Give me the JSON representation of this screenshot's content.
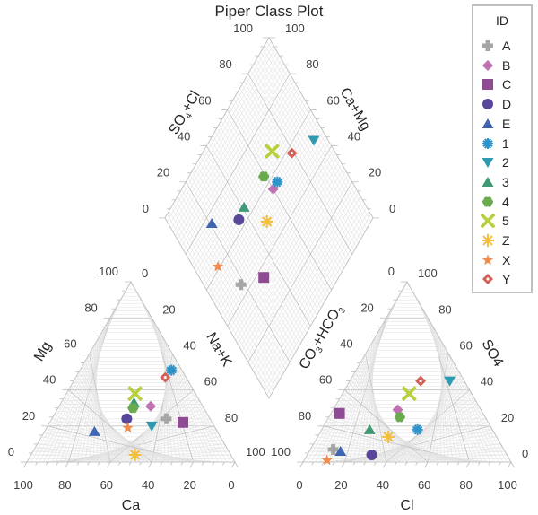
{
  "chart_data": {
    "type": "scatter",
    "subtype": "piper-diagram",
    "title": "Piper Class Plot",
    "cation_triangle": {
      "bottom_axis_label": "Ca",
      "left_axis_label": "Mg",
      "right_axis_label": "Na+K",
      "bottom_ticks": [
        "100",
        "80",
        "60",
        "40",
        "20",
        "0"
      ],
      "left_ticks": [
        "0",
        "20",
        "40",
        "60",
        "80",
        "100"
      ],
      "right_ticks": [
        "0",
        "20",
        "40",
        "60",
        "80",
        "100"
      ]
    },
    "anion_triangle": {
      "bottom_axis_label": "Cl",
      "left_axis_label": "CO3+HCO3",
      "right_axis_label": "SO4",
      "bottom_ticks": [
        "0",
        "20",
        "40",
        "60",
        "80",
        "100"
      ],
      "left_ticks": [
        "100",
        "80",
        "60",
        "40",
        "20",
        "0"
      ],
      "right_ticks": [
        "0",
        "20",
        "40",
        "60",
        "80",
        "100"
      ]
    },
    "diamond": {
      "upper_left_axis_label": "SO4+Cl",
      "upper_right_axis_label": "Ca+Mg",
      "left_ticks": [
        "0",
        "20",
        "40",
        "60",
        "80",
        "100"
      ],
      "right_ticks": [
        "0",
        "20",
        "40",
        "60",
        "80",
        "100"
      ],
      "lower_left_ticks": [
        "0",
        "20"
      ],
      "lower_right_ticks": [
        "0",
        "20"
      ]
    },
    "legend": {
      "title": "ID",
      "position": "top-right"
    },
    "grid": true,
    "series": [
      {
        "name": "A",
        "marker": "plus",
        "color": "#a6a6a6",
        "Ca": 21,
        "Mg": 24,
        "NaK": 55,
        "Cl": 11,
        "SO4": 7,
        "CO3HCO3": 82
      },
      {
        "name": "B",
        "marker": "diamond",
        "color": "#c071b4",
        "Ca": 25,
        "Mg": 31,
        "NaK": 44,
        "Cl": 31,
        "SO4": 29,
        "CO3HCO3": 40
      },
      {
        "name": "C",
        "marker": "square",
        "color": "#8e4b93",
        "Ca": 14,
        "Mg": 22,
        "NaK": 64,
        "Cl": 4,
        "SO4": 27,
        "CO3HCO3": 69
      },
      {
        "name": "D",
        "marker": "circle",
        "color": "#58479a",
        "Ca": 40,
        "Mg": 24,
        "NaK": 36,
        "Cl": 31,
        "SO4": 4,
        "CO3HCO3": 65
      },
      {
        "name": "E",
        "marker": "triangle-up",
        "color": "#4066b2",
        "Ca": 59,
        "Mg": 17,
        "NaK": 24,
        "Cl": 15,
        "SO4": 6,
        "CO3HCO3": 79
      },
      {
        "name": "1",
        "marker": "asterisk",
        "color": "#2e93c9",
        "Ca": 5,
        "Mg": 51,
        "NaK": 44,
        "Cl": 46,
        "SO4": 18,
        "CO3HCO3": 36
      },
      {
        "name": "2",
        "marker": "triangle-down",
        "color": "#2e9ab0",
        "Ca": 30,
        "Mg": 20,
        "NaK": 50,
        "Cl": 48,
        "SO4": 45,
        "CO3HCO3": 7
      },
      {
        "name": "3",
        "marker": "triangle-up",
        "color": "#3f9a75",
        "Ca": 32,
        "Mg": 33,
        "NaK": 35,
        "Cl": 23,
        "SO4": 18,
        "CO3HCO3": 59
      },
      {
        "name": "4",
        "marker": "flower",
        "color": "#6aab4e",
        "Ca": 34,
        "Mg": 30,
        "NaK": 36,
        "Cl": 34,
        "SO4": 25,
        "CO3HCO3": 41
      },
      {
        "name": "5",
        "marker": "x",
        "color": "#b9cf3c",
        "Ca": 29,
        "Mg": 38,
        "NaK": 33,
        "Cl": 32,
        "SO4": 38,
        "CO3HCO3": 30
      },
      {
        "name": "Z",
        "marker": "starburst",
        "color": "#f2be3c",
        "Ca": 46,
        "Mg": 4,
        "NaK": 50,
        "Cl": 34,
        "SO4": 14,
        "CO3HCO3": 52
      },
      {
        "name": "X",
        "marker": "star",
        "color": "#ee8c4d",
        "Ca": 42,
        "Mg": 19,
        "NaK": 39,
        "Cl": 11,
        "SO4": 1,
        "CO3HCO3": 88
      },
      {
        "name": "Y",
        "marker": "diamond-open",
        "color": "#d45f57",
        "Ca": 10,
        "Mg": 47,
        "NaK": 43,
        "Cl": 34,
        "SO4": 45,
        "CO3HCO3": 21
      }
    ]
  },
  "labels": {
    "title": "Piper Class Plot",
    "legend_title": "ID"
  }
}
